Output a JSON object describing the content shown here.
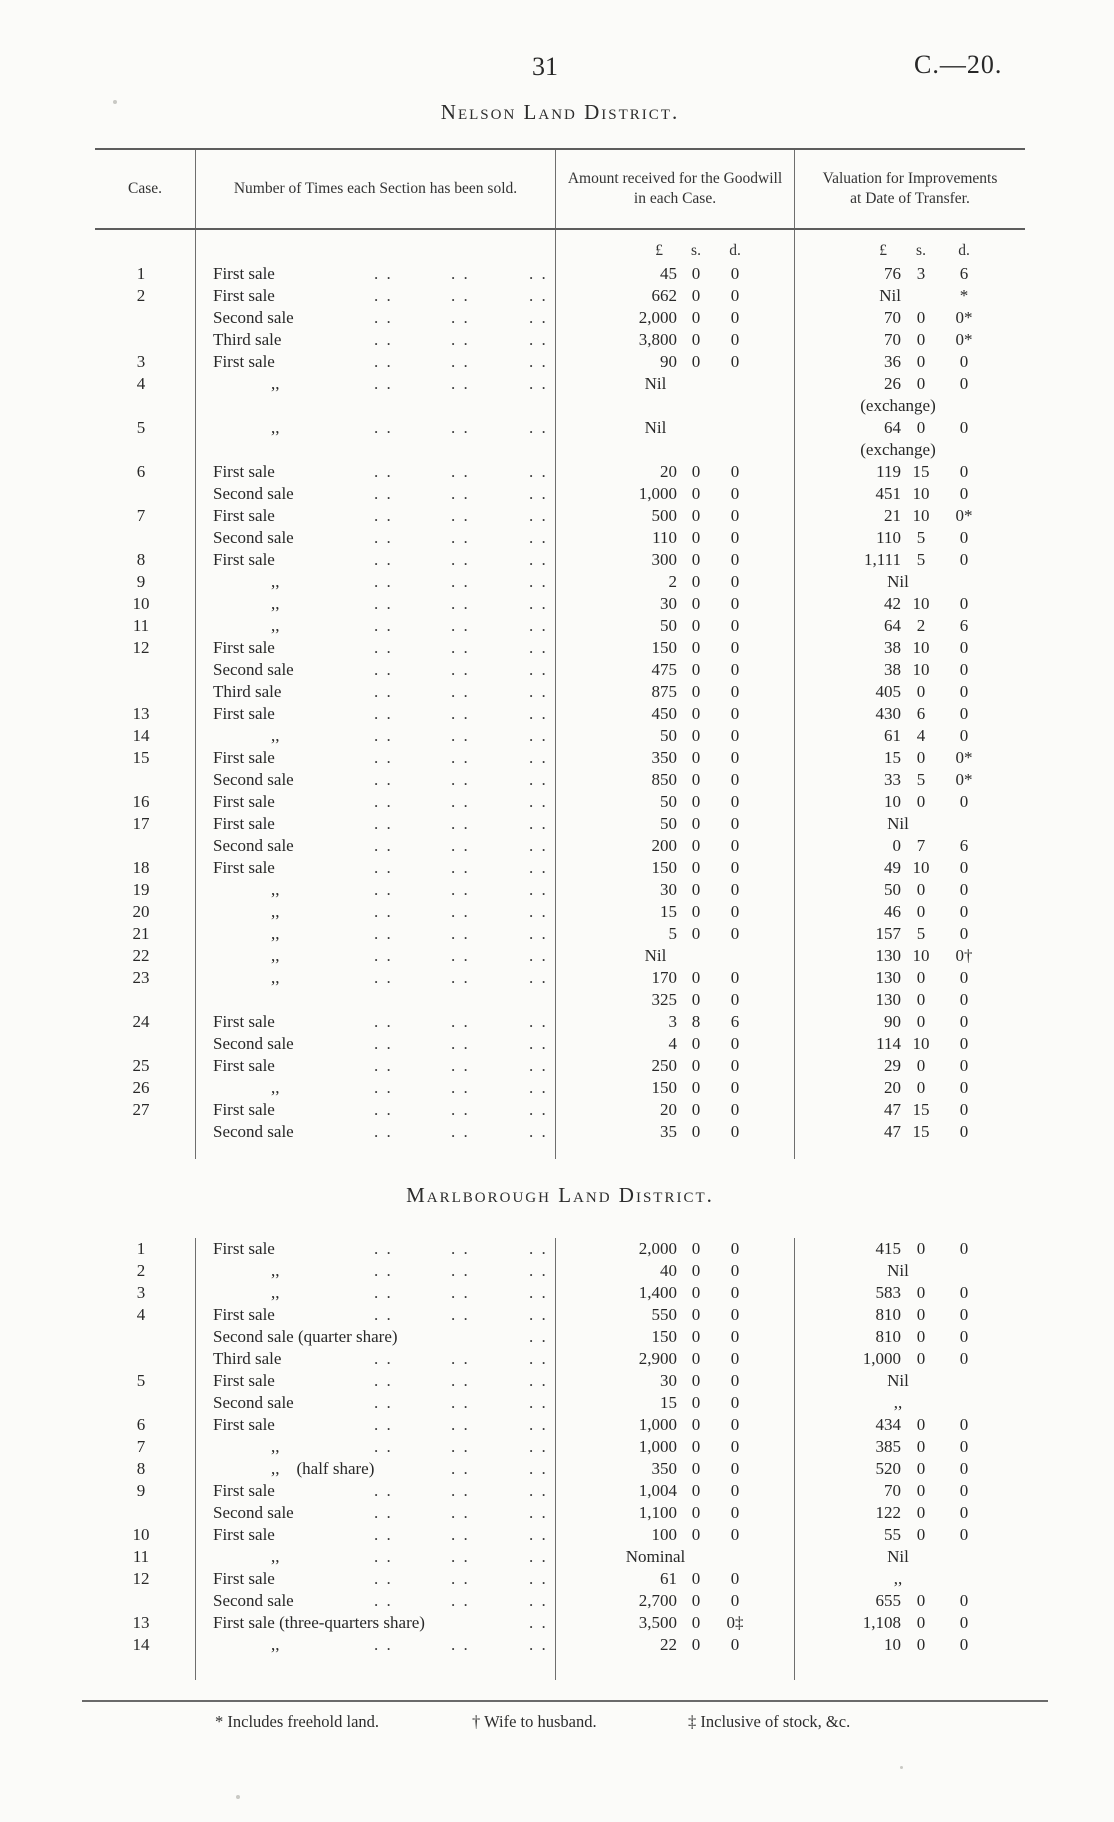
{
  "page": {
    "number": "31",
    "doc_ref": "C.—20."
  },
  "money_header": [
    "£",
    "s.",
    "d."
  ],
  "footnotes": [
    {
      "mark": "*",
      "text": "Includes freehold land."
    },
    {
      "mark": "†",
      "text": "Wife to husband."
    },
    {
      "mark": "‡",
      "text": "Inclusive of stock, &c."
    }
  ],
  "tables": [
    {
      "title": "Nelson Land District.",
      "columns": [
        "Case.",
        "Number of Times each Section has been sold.",
        "Amount received for the Goodwill in each Case.",
        "Valuation for Improvements at Date of Transfer."
      ],
      "rows": [
        {
          "c": "1",
          "s": "First sale",
          "d": 3,
          "a": [
            "45",
            "0",
            "0"
          ],
          "v": [
            "76",
            "3",
            "6"
          ]
        },
        {
          "c": "2",
          "s": "First sale",
          "d": 3,
          "a": [
            "662",
            "0",
            "0"
          ],
          "v": [
            "Nil",
            "",
            "*"
          ]
        },
        {
          "c": "",
          "s": "Second sale",
          "d": 3,
          "a": [
            "2,000",
            "0",
            "0"
          ],
          "v": [
            "70",
            "0",
            "0*"
          ]
        },
        {
          "c": "",
          "s": "Third sale",
          "d": 3,
          "a": [
            "3,800",
            "0",
            "0"
          ],
          "v": [
            "70",
            "0",
            "0*"
          ]
        },
        {
          "c": "3",
          "s": "First sale",
          "d": 3,
          "a": [
            "90",
            "0",
            "0"
          ],
          "v": [
            "36",
            "0",
            "0"
          ]
        },
        {
          "c": "4",
          "s": ",,",
          "d": 3,
          "a": "Nil",
          "v": [
            "26",
            "0",
            "0"
          ]
        },
        {
          "c": "",
          "s": "",
          "d": 0,
          "a": "",
          "v": "(exchange)"
        },
        {
          "c": "5",
          "s": ",,",
          "d": 3,
          "a": "Nil",
          "v": [
            "64",
            "0",
            "0"
          ]
        },
        {
          "c": "",
          "s": "",
          "d": 0,
          "a": "",
          "v": "(exchange)"
        },
        {
          "c": "6",
          "s": "First sale",
          "d": 3,
          "a": [
            "20",
            "0",
            "0"
          ],
          "v": [
            "119",
            "15",
            "0"
          ]
        },
        {
          "c": "",
          "s": "Second sale",
          "d": 3,
          "a": [
            "1,000",
            "0",
            "0"
          ],
          "v": [
            "451",
            "10",
            "0"
          ]
        },
        {
          "c": "7",
          "s": "First sale",
          "d": 3,
          "a": [
            "500",
            "0",
            "0"
          ],
          "v": [
            "21",
            "10",
            "0*"
          ]
        },
        {
          "c": "",
          "s": "Second sale",
          "d": 3,
          "a": [
            "110",
            "0",
            "0"
          ],
          "v": [
            "110",
            "5",
            "0"
          ]
        },
        {
          "c": "8",
          "s": "First sale",
          "d": 3,
          "a": [
            "300",
            "0",
            "0"
          ],
          "v": [
            "1,111",
            "5",
            "0"
          ]
        },
        {
          "c": "9",
          "s": ",,",
          "d": 3,
          "a": [
            "2",
            "0",
            "0"
          ],
          "v": "Nil"
        },
        {
          "c": "10",
          "s": ",,",
          "d": 3,
          "a": [
            "30",
            "0",
            "0"
          ],
          "v": [
            "42",
            "10",
            "0"
          ]
        },
        {
          "c": "11",
          "s": ",,",
          "d": 3,
          "a": [
            "50",
            "0",
            "0"
          ],
          "v": [
            "64",
            "2",
            "6"
          ]
        },
        {
          "c": "12",
          "s": "First sale",
          "d": 3,
          "a": [
            "150",
            "0",
            "0"
          ],
          "v": [
            "38",
            "10",
            "0"
          ]
        },
        {
          "c": "",
          "s": "Second sale",
          "d": 3,
          "a": [
            "475",
            "0",
            "0"
          ],
          "v": [
            "38",
            "10",
            "0"
          ]
        },
        {
          "c": "",
          "s": "Third sale",
          "d": 3,
          "a": [
            "875",
            "0",
            "0"
          ],
          "v": [
            "405",
            "0",
            "0"
          ]
        },
        {
          "c": "13",
          "s": "First sale",
          "d": 3,
          "a": [
            "450",
            "0",
            "0"
          ],
          "v": [
            "430",
            "6",
            "0"
          ]
        },
        {
          "c": "14",
          "s": ",,",
          "d": 3,
          "a": [
            "50",
            "0",
            "0"
          ],
          "v": [
            "61",
            "4",
            "0"
          ]
        },
        {
          "c": "15",
          "s": "First sale",
          "d": 3,
          "a": [
            "350",
            "0",
            "0"
          ],
          "v": [
            "15",
            "0",
            "0*"
          ]
        },
        {
          "c": "",
          "s": "Second sale",
          "d": 3,
          "a": [
            "850",
            "0",
            "0"
          ],
          "v": [
            "33",
            "5",
            "0*"
          ]
        },
        {
          "c": "16",
          "s": "First sale",
          "d": 3,
          "a": [
            "50",
            "0",
            "0"
          ],
          "v": [
            "10",
            "0",
            "0"
          ]
        },
        {
          "c": "17",
          "s": "First sale",
          "d": 3,
          "a": [
            "50",
            "0",
            "0"
          ],
          "v": "Nil"
        },
        {
          "c": "",
          "s": "Second sale",
          "d": 3,
          "a": [
            "200",
            "0",
            "0"
          ],
          "v": [
            "0",
            "7",
            "6"
          ]
        },
        {
          "c": "18",
          "s": "First sale",
          "d": 3,
          "a": [
            "150",
            "0",
            "0"
          ],
          "v": [
            "49",
            "10",
            "0"
          ]
        },
        {
          "c": "19",
          "s": ",,",
          "d": 3,
          "a": [
            "30",
            "0",
            "0"
          ],
          "v": [
            "50",
            "0",
            "0"
          ]
        },
        {
          "c": "20",
          "s": ",,",
          "d": 3,
          "a": [
            "15",
            "0",
            "0"
          ],
          "v": [
            "46",
            "0",
            "0"
          ]
        },
        {
          "c": "21",
          "s": ",,",
          "d": 3,
          "a": [
            "5",
            "0",
            "0"
          ],
          "v": [
            "157",
            "5",
            "0"
          ]
        },
        {
          "c": "22",
          "s": ",,",
          "d": 3,
          "a": "Nil",
          "v": [
            "130",
            "10",
            "0†"
          ]
        },
        {
          "c": "23",
          "s": ",,",
          "d": 3,
          "a": [
            "170",
            "0",
            "0"
          ],
          "v": [
            "130",
            "0",
            "0"
          ]
        },
        {
          "c": "",
          "s": "",
          "d": 0,
          "a": [
            "325",
            "0",
            "0"
          ],
          "v": [
            "130",
            "0",
            "0"
          ]
        },
        {
          "c": "24",
          "s": "First sale",
          "d": 3,
          "a": [
            "3",
            "8",
            "6"
          ],
          "v": [
            "90",
            "0",
            "0"
          ]
        },
        {
          "c": "",
          "s": "Second sale",
          "d": 3,
          "a": [
            "4",
            "0",
            "0"
          ],
          "v": [
            "114",
            "10",
            "0"
          ]
        },
        {
          "c": "25",
          "s": "First sale",
          "d": 3,
          "a": [
            "250",
            "0",
            "0"
          ],
          "v": [
            "29",
            "0",
            "0"
          ]
        },
        {
          "c": "26",
          "s": ",,",
          "d": 3,
          "a": [
            "150",
            "0",
            "0"
          ],
          "v": [
            "20",
            "0",
            "0"
          ]
        },
        {
          "c": "27",
          "s": "First sale",
          "d": 3,
          "a": [
            "20",
            "0",
            "0"
          ],
          "v": [
            "47",
            "15",
            "0"
          ]
        },
        {
          "c": "",
          "s": "Second sale",
          "d": 3,
          "a": [
            "35",
            "0",
            "0"
          ],
          "v": [
            "47",
            "15",
            "0"
          ]
        }
      ]
    },
    {
      "title": "Marlborough Land District.",
      "rows": [
        {
          "c": "1",
          "s": "First sale",
          "d": 3,
          "a": [
            "2,000",
            "0",
            "0"
          ],
          "v": [
            "415",
            "0",
            "0"
          ]
        },
        {
          "c": "2",
          "s": ",,",
          "d": 3,
          "a": [
            "40",
            "0",
            "0"
          ],
          "v": "Nil"
        },
        {
          "c": "3",
          "s": ",,",
          "d": 3,
          "a": [
            "1,400",
            "0",
            "0"
          ],
          "v": [
            "583",
            "0",
            "0"
          ]
        },
        {
          "c": "4",
          "s": "First sale",
          "d": 3,
          "a": [
            "550",
            "0",
            "0"
          ],
          "v": [
            "810",
            "0",
            "0"
          ]
        },
        {
          "c": "",
          "s": "Second sale (quarter share)",
          "d": 1,
          "a": [
            "150",
            "0",
            "0"
          ],
          "v": [
            "810",
            "0",
            "0"
          ]
        },
        {
          "c": "",
          "s": "Third sale",
          "d": 3,
          "a": [
            "2,900",
            "0",
            "0"
          ],
          "v": [
            "1,000",
            "0",
            "0"
          ]
        },
        {
          "c": "5",
          "s": "First sale",
          "d": 3,
          "a": [
            "30",
            "0",
            "0"
          ],
          "v": "Nil"
        },
        {
          "c": "",
          "s": "Second sale",
          "d": 3,
          "a": [
            "15",
            "0",
            "0"
          ],
          "v": ",,"
        },
        {
          "c": "6",
          "s": "First sale",
          "d": 3,
          "a": [
            "1,000",
            "0",
            "0"
          ],
          "v": [
            "434",
            "0",
            "0"
          ]
        },
        {
          "c": "7",
          "s": ",,",
          "d": 3,
          "a": [
            "1,000",
            "0",
            "0"
          ],
          "v": [
            "385",
            "0",
            "0"
          ]
        },
        {
          "c": "8",
          "s": ",,    (half share)",
          "d": 2,
          "a": [
            "350",
            "0",
            "0"
          ],
          "v": [
            "520",
            "0",
            "0"
          ]
        },
        {
          "c": "9",
          "s": "First sale",
          "d": 3,
          "a": [
            "1,004",
            "0",
            "0"
          ],
          "v": [
            "70",
            "0",
            "0"
          ]
        },
        {
          "c": "",
          "s": "Second sale",
          "d": 3,
          "a": [
            "1,100",
            "0",
            "0"
          ],
          "v": [
            "122",
            "0",
            "0"
          ]
        },
        {
          "c": "10",
          "s": "First sale",
          "d": 3,
          "a": [
            "100",
            "0",
            "0"
          ],
          "v": [
            "55",
            "0",
            "0"
          ]
        },
        {
          "c": "11",
          "s": ",,",
          "d": 3,
          "a": "Nominal",
          "v": "Nil"
        },
        {
          "c": "12",
          "s": "First sale",
          "d": 3,
          "a": [
            "61",
            "0",
            "0"
          ],
          "v": ",,"
        },
        {
          "c": "",
          "s": "Second sale",
          "d": 3,
          "a": [
            "2,700",
            "0",
            "0"
          ],
          "v": [
            "655",
            "0",
            "0"
          ]
        },
        {
          "c": "13",
          "s": "First sale (three-quarters share)",
          "d": 1,
          "a": [
            "3,500",
            "0",
            "0‡"
          ],
          "v": [
            "1,108",
            "0",
            "0"
          ]
        },
        {
          "c": "14",
          "s": ",,",
          "d": 3,
          "a": [
            "22",
            "0",
            "0"
          ],
          "v": [
            "10",
            "0",
            "0"
          ]
        }
      ]
    }
  ]
}
